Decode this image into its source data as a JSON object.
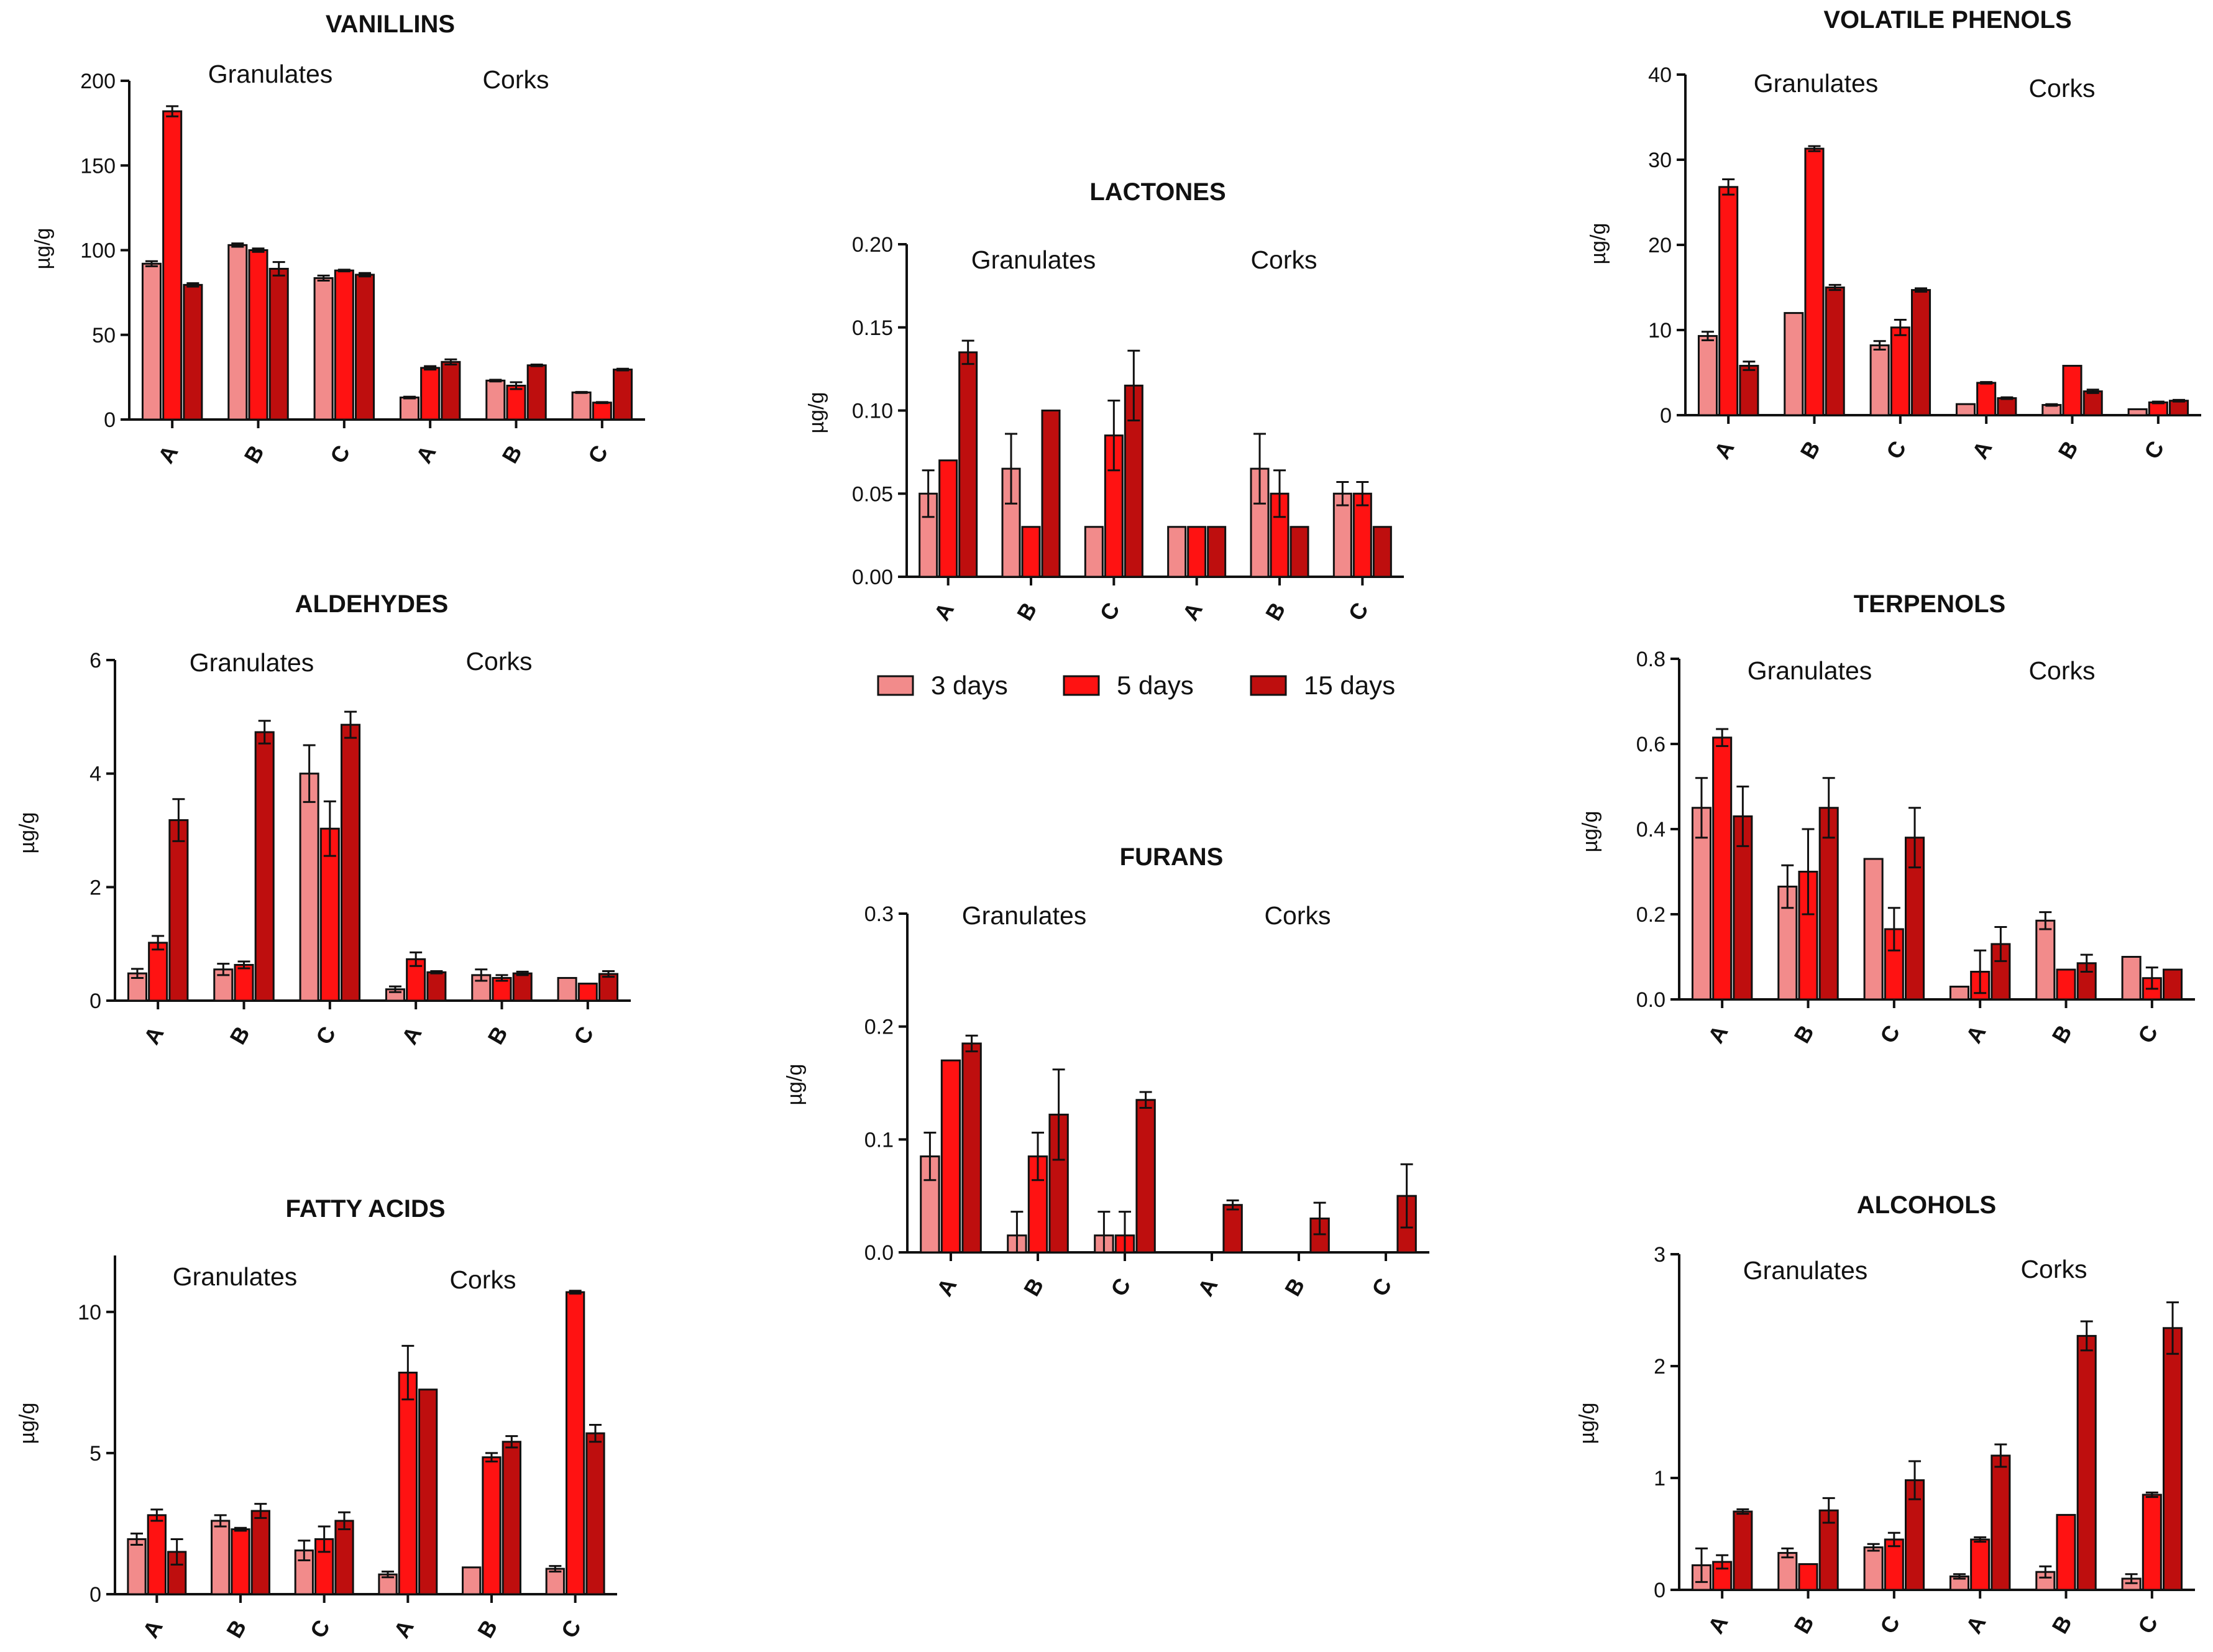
{
  "colors": {
    "d3": "#F28B8B",
    "d5": "#FF1212",
    "d15": "#BE0E0E",
    "axis": "#111111",
    "text": "#111111"
  },
  "legend": {
    "items": [
      {
        "label": "3 days",
        "color": "#F28B8B"
      },
      {
        "label": "5 days",
        "color": "#FF1212"
      },
      {
        "label": "15 days",
        "color": "#BE0E0E"
      }
    ]
  },
  "chart_data": [
    {
      "type": "bar",
      "title": "VANILLINS",
      "ylabel": "µg/g",
      "ylim": [
        0,
        200
      ],
      "yticks": [
        "0",
        "50",
        "100",
        "150",
        "200"
      ],
      "categories": [
        "A",
        "B",
        "C",
        "A",
        "B",
        "C"
      ],
      "groups": [
        "Granulates",
        "Corks"
      ],
      "series": [
        {
          "name": "3 days",
          "values": [
            92,
            103,
            83.5,
            13,
            23,
            16
          ],
          "errors": [
            1.5,
            1,
            1.5,
            0.5,
            0.5,
            0.3
          ]
        },
        {
          "name": "5 days",
          "values": [
            182,
            100,
            88,
            30.5,
            20,
            10
          ],
          "errors": [
            3,
            1,
            0.5,
            1,
            2,
            0.3
          ]
        },
        {
          "name": "15 days",
          "values": [
            79.5,
            89,
            85.5,
            34,
            32,
            29.5
          ],
          "errors": [
            1,
            4,
            1,
            1.5,
            0.5,
            0.5
          ]
        }
      ]
    },
    {
      "type": "bar",
      "title": "LACTONES",
      "ylabel": "µg/g",
      "ylim": [
        0,
        0.2
      ],
      "yticks": [
        "0.00",
        "0.05",
        "0.10",
        "0.15",
        "0.20"
      ],
      "categories": [
        "A",
        "B",
        "C",
        "A",
        "B",
        "C"
      ],
      "groups": [
        "Granulates",
        "Corks"
      ],
      "series": [
        {
          "name": "3 days",
          "values": [
            0.05,
            0.065,
            0.03,
            0.03,
            0.065,
            0.05
          ],
          "errors": [
            0.014,
            0.021,
            0,
            0,
            0.021,
            0.007
          ]
        },
        {
          "name": "5 days",
          "values": [
            0.07,
            0.03,
            0.085,
            0.03,
            0.05,
            0.05
          ],
          "errors": [
            0,
            0,
            0.021,
            0,
            0.014,
            0.007
          ]
        },
        {
          "name": "15 days",
          "values": [
            0.135,
            0.1,
            0.115,
            0.03,
            0.03,
            0.03
          ],
          "errors": [
            0.007,
            0,
            0.021,
            0,
            0,
            0
          ]
        }
      ]
    },
    {
      "type": "bar",
      "title": "VOLATILE PHENOLS",
      "ylabel": "µg/g",
      "ylim": [
        0,
        40
      ],
      "yticks": [
        "0",
        "10",
        "20",
        "30",
        "40"
      ],
      "categories": [
        "A",
        "B",
        "C",
        "A",
        "B",
        "C"
      ],
      "groups": [
        "Granulates",
        "Corks"
      ],
      "series": [
        {
          "name": "3 days",
          "values": [
            9.3,
            12,
            8.2,
            1.3,
            1.2,
            0.7
          ],
          "errors": [
            0.5,
            0,
            0.5,
            0,
            0.1,
            0
          ]
        },
        {
          "name": "5 days",
          "values": [
            26.8,
            31.3,
            10.3,
            3.8,
            5.8,
            1.5
          ],
          "errors": [
            0.9,
            0.3,
            0.9,
            0.1,
            0,
            0.1
          ]
        },
        {
          "name": "15 days",
          "values": [
            5.8,
            15,
            14.7,
            2,
            2.8,
            1.7
          ],
          "errors": [
            0.5,
            0.3,
            0.2,
            0.1,
            0.2,
            0.1
          ]
        }
      ]
    },
    {
      "type": "bar",
      "title": "ALDEHYDES",
      "ylabel": "µg/g",
      "ylim": [
        0,
        6
      ],
      "yticks": [
        "0",
        "2",
        "4",
        "6"
      ],
      "categories": [
        "A",
        "B",
        "C",
        "A",
        "B",
        "C"
      ],
      "groups": [
        "Granulates",
        "Corks"
      ],
      "series": [
        {
          "name": "3 days",
          "values": [
            0.48,
            0.55,
            4,
            0.2,
            0.45,
            0.4
          ],
          "errors": [
            0.08,
            0.1,
            0.5,
            0.05,
            0.1,
            0
          ]
        },
        {
          "name": "5 days",
          "values": [
            1.02,
            0.63,
            3.03,
            0.73,
            0.4,
            0.3
          ],
          "errors": [
            0.12,
            0.06,
            0.48,
            0.12,
            0.05,
            0
          ]
        },
        {
          "name": "15 days",
          "values": [
            3.18,
            4.73,
            4.86,
            0.5,
            0.48,
            0.47
          ],
          "errors": [
            0.37,
            0.2,
            0.23,
            0.02,
            0.03,
            0.05
          ]
        }
      ]
    },
    {
      "type": "bar",
      "title": "TERPENOLS",
      "ylabel": "µg/g",
      "ylim": [
        0,
        0.8
      ],
      "yticks": [
        "0.0",
        "0.2",
        "0.4",
        "0.6",
        "0.8"
      ],
      "categories": [
        "A",
        "B",
        "C",
        "A",
        "B",
        "C"
      ],
      "groups": [
        "Granulates",
        "Corks"
      ],
      "series": [
        {
          "name": "3 days",
          "values": [
            0.45,
            0.265,
            0.33,
            0.03,
            0.185,
            0.1
          ],
          "errors": [
            0.07,
            0.05,
            0,
            0,
            0.02,
            0
          ]
        },
        {
          "name": "5 days",
          "values": [
            0.615,
            0.3,
            0.165,
            0.065,
            0.07,
            0.05
          ],
          "errors": [
            0.02,
            0.1,
            0.05,
            0.05,
            0,
            0.025
          ]
        },
        {
          "name": "15 days",
          "values": [
            0.43,
            0.45,
            0.38,
            0.13,
            0.085,
            0.07
          ],
          "errors": [
            0.07,
            0.07,
            0.07,
            0.04,
            0.02,
            0
          ]
        }
      ]
    },
    {
      "type": "bar",
      "title": "FURANS",
      "ylabel": "µg/g",
      "ylim": [
        0,
        0.3
      ],
      "yticks": [
        "0.0",
        "0.1",
        "0.2",
        "0.3"
      ],
      "categories": [
        "A",
        "B",
        "C",
        "A",
        "B",
        "C"
      ],
      "groups": [
        "Granulates",
        "Corks"
      ],
      "series": [
        {
          "name": "3 days",
          "values": [
            0.085,
            0.015,
            0.015,
            0,
            0,
            0
          ],
          "errors": [
            0.021,
            0.021,
            0.021,
            0,
            0,
            0
          ]
        },
        {
          "name": "5 days",
          "values": [
            0.17,
            0.085,
            0.015,
            0,
            0,
            0
          ],
          "errors": [
            0,
            0.021,
            0.021,
            0,
            0,
            0
          ]
        },
        {
          "name": "15 days",
          "values": [
            0.185,
            0.122,
            0.135,
            0.042,
            0.03,
            0.05
          ],
          "errors": [
            0.007,
            0.04,
            0.007,
            0.004,
            0.014,
            0.028
          ]
        }
      ]
    },
    {
      "type": "bar",
      "title": "FATTY ACIDS",
      "ylabel": "µg/g",
      "ylim": [
        0,
        12
      ],
      "yticks": [
        "0",
        "5",
        "10"
      ],
      "categories": [
        "A",
        "B",
        "C",
        "A",
        "B",
        "C"
      ],
      "groups": [
        "Granulates",
        "Corks"
      ],
      "series": [
        {
          "name": "3 days",
          "values": [
            1.95,
            2.6,
            1.55,
            0.7,
            0.95,
            0.9
          ],
          "errors": [
            0.2,
            0.2,
            0.35,
            0.1,
            0,
            0.1
          ]
        },
        {
          "name": "5 days",
          "values": [
            2.8,
            2.3,
            1.95,
            7.85,
            4.85,
            10.7
          ],
          "errors": [
            0.2,
            0.05,
            0.45,
            0.95,
            0.15,
            0.05
          ]
        },
        {
          "name": "15 days",
          "values": [
            1.5,
            2.95,
            2.6,
            7.25,
            5.4,
            5.7
          ],
          "errors": [
            0.45,
            0.25,
            0.3,
            0,
            0.2,
            0.3
          ]
        }
      ]
    },
    {
      "type": "bar",
      "title": "ALCOHOLS",
      "ylabel": "µg/g",
      "ylim": [
        0,
        3
      ],
      "yticks": [
        "0",
        "1",
        "2",
        "3"
      ],
      "categories": [
        "A",
        "B",
        "C",
        "A",
        "B",
        "C"
      ],
      "groups": [
        "Granulates",
        "Corks"
      ],
      "series": [
        {
          "name": "3 days",
          "values": [
            0.22,
            0.33,
            0.38,
            0.12,
            0.16,
            0.1
          ],
          "errors": [
            0.15,
            0.04,
            0.03,
            0.02,
            0.05,
            0.04
          ]
        },
        {
          "name": "5 days",
          "values": [
            0.25,
            0.23,
            0.45,
            0.45,
            0.67,
            0.85
          ],
          "errors": [
            0.06,
            0,
            0.06,
            0.02,
            0,
            0.02
          ]
        },
        {
          "name": "15 days",
          "values": [
            0.7,
            0.71,
            0.98,
            1.2,
            2.27,
            2.34
          ],
          "errors": [
            0.02,
            0.11,
            0.17,
            0.1,
            0.13,
            0.23
          ]
        }
      ]
    }
  ]
}
